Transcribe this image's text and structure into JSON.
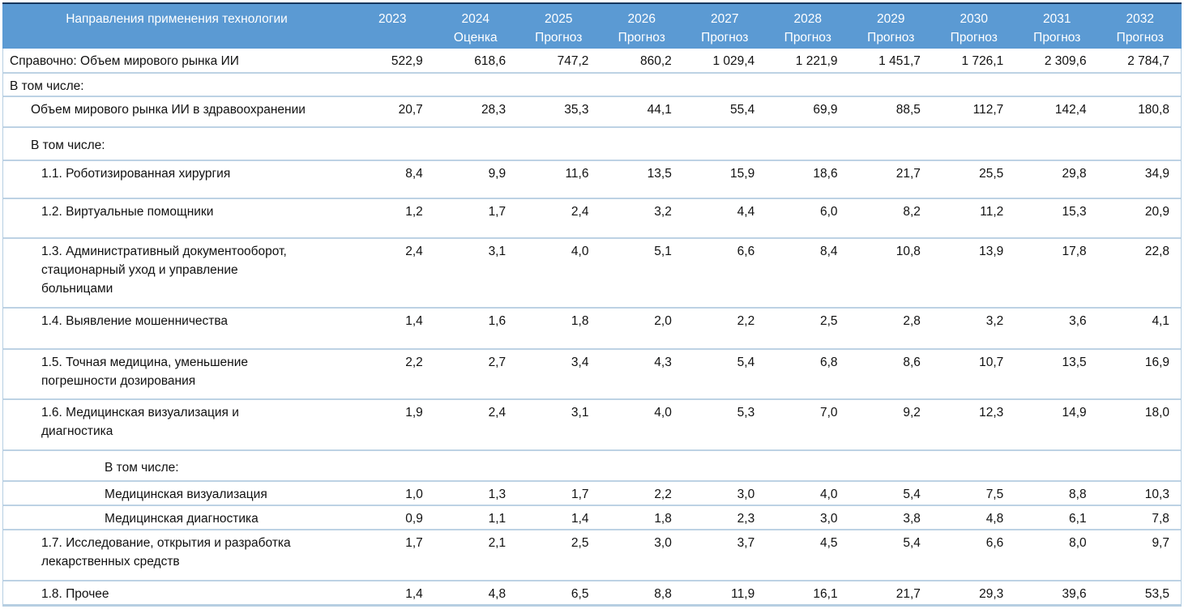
{
  "colors": {
    "header_bg": "#5b9ad3",
    "header_top_border": "#17375e",
    "header_text": "#ffffff",
    "row_separator": "#bdd2e4",
    "body_text": "#111111"
  },
  "table": {
    "header": {
      "label_column": "Направления применения технологии",
      "year_columns": [
        {
          "year": "2023",
          "sub": ""
        },
        {
          "year": "2024",
          "sub": "Оценка"
        },
        {
          "year": "2025",
          "sub": "Прогноз"
        },
        {
          "year": "2026",
          "sub": "Прогноз"
        },
        {
          "year": "2027",
          "sub": "Прогноз"
        },
        {
          "year": "2028",
          "sub": "Прогноз"
        },
        {
          "year": "2029",
          "sub": "Прогноз"
        },
        {
          "year": "2030",
          "sub": "Прогноз"
        },
        {
          "year": "2031",
          "sub": "Прогноз"
        },
        {
          "year": "2032",
          "sub": "Прогноз"
        }
      ]
    },
    "rows": [
      {
        "label": "Справочно: Объем мирового рынка ИИ",
        "indent": 0,
        "values": [
          "522,9",
          "618,6",
          "747,2",
          "860,2",
          "1 029,4",
          "1 221,9",
          "1 451,7",
          "1 726,1",
          "2 309,6",
          "2 784,7"
        ]
      },
      {
        "label": "В том числе:",
        "indent": 0,
        "values": []
      },
      {
        "label": "Объем мирового рынка ИИ в здравоохранении",
        "indent": 1,
        "values": [
          "20,7",
          "28,3",
          "35,3",
          "44,1",
          "55,4",
          "69,9",
          "88,5",
          "112,7",
          "142,4",
          "180,8"
        ]
      },
      {
        "label": "В том числе:",
        "indent": 1,
        "values": []
      },
      {
        "label": "1.1. Роботизированная хирургия",
        "indent": 2,
        "values": [
          "8,4",
          "9,9",
          "11,6",
          "13,5",
          "15,9",
          "18,6",
          "21,7",
          "25,5",
          "29,8",
          "34,9"
        ]
      },
      {
        "label": "1.2. Виртуальные помощники",
        "indent": 2,
        "values": [
          "1,2",
          "1,7",
          "2,4",
          "3,2",
          "4,4",
          "6,0",
          "8,2",
          "11,2",
          "15,3",
          "20,9"
        ]
      },
      {
        "label": "1.3. Административный документооборот,\nстационарный уход и управление\nбольницами",
        "indent": 2,
        "values": [
          "2,4",
          "3,1",
          "4,0",
          "5,1",
          "6,6",
          "8,4",
          "10,8",
          "13,9",
          "17,8",
          "22,8"
        ]
      },
      {
        "label": "1.4. Выявление мошенничества",
        "indent": 2,
        "values": [
          "1,4",
          "1,6",
          "1,8",
          "2,0",
          "2,2",
          "2,5",
          "2,8",
          "3,2",
          "3,6",
          "4,1"
        ]
      },
      {
        "label": "1.5. Точная медицина, уменьшение\nпогрешности дозирования",
        "indent": 2,
        "values": [
          "2,2",
          "2,7",
          "3,4",
          "4,3",
          "5,4",
          "6,8",
          "8,6",
          "10,7",
          "13,5",
          "16,9"
        ]
      },
      {
        "label": "1.6. Медицинская визуализация и\nдиагностика",
        "indent": 2,
        "values": [
          "1,9",
          "2,4",
          "3,1",
          "4,0",
          "5,3",
          "7,0",
          "9,2",
          "12,3",
          "14,9",
          "18,0"
        ]
      },
      {
        "label": "В том числе:",
        "indent": 3,
        "values": []
      },
      {
        "label": "Медицинская визуализация",
        "indent": 3,
        "values": [
          "1,0",
          "1,3",
          "1,7",
          "2,2",
          "3,0",
          "4,0",
          "5,4",
          "7,5",
          "8,8",
          "10,3"
        ]
      },
      {
        "label": "Медицинская диагностика",
        "indent": 3,
        "values": [
          "0,9",
          "1,1",
          "1,4",
          "1,8",
          "2,3",
          "3,0",
          "3,8",
          "4,8",
          "6,1",
          "7,8"
        ]
      },
      {
        "label": "1.7. Исследование, открытия и разработка\nлекарственных средств",
        "indent": 2,
        "values": [
          "1,7",
          "2,1",
          "2,5",
          "3,0",
          "3,7",
          "4,5",
          "5,4",
          "6,6",
          "8,0",
          "9,7"
        ]
      },
      {
        "label": "1.8. Прочее",
        "indent": 2,
        "values": [
          "1,4",
          "4,8",
          "6,5",
          "8,8",
          "11,9",
          "16,1",
          "21,7",
          "29,3",
          "39,6",
          "53,5"
        ]
      }
    ]
  }
}
